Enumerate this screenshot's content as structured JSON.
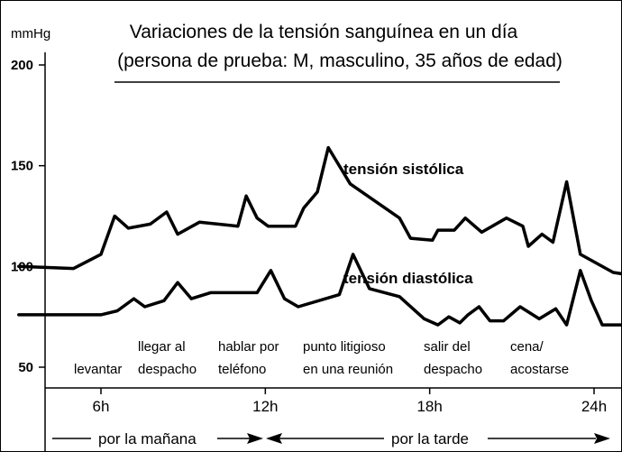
{
  "chart_data": {
    "type": "line",
    "title": "Variaciones de la tensión sanguínea en un día",
    "subtitle": "(persona de prueba: M, masculino, 35 años de edad)",
    "ylabel": "mmHg",
    "xlabel": "",
    "ylim": [
      50,
      200
    ],
    "xlim": [
      3,
      24
    ],
    "yticks": [
      50,
      100,
      150,
      200
    ],
    "xticks": [
      {
        "value": 6,
        "label": "6h"
      },
      {
        "value": 12,
        "label": "12h"
      },
      {
        "value": 18,
        "label": "18h"
      },
      {
        "value": 24,
        "label": "24h"
      }
    ],
    "grid": false,
    "legend": "none",
    "series": [
      {
        "name": "tensión sistólica",
        "color": "#000000",
        "points": [
          [
            3,
            100
          ],
          [
            5,
            99
          ],
          [
            6,
            106
          ],
          [
            6.5,
            125
          ],
          [
            7,
            119
          ],
          [
            7.8,
            121
          ],
          [
            8.4,
            127
          ],
          [
            8.8,
            116
          ],
          [
            9.6,
            122
          ],
          [
            11,
            120
          ],
          [
            11.3,
            135
          ],
          [
            11.7,
            124
          ],
          [
            12.1,
            120
          ],
          [
            13.1,
            120
          ],
          [
            13.4,
            129
          ],
          [
            13.9,
            137
          ],
          [
            14.3,
            159
          ],
          [
            15.1,
            141
          ],
          [
            16.9,
            124
          ],
          [
            17.3,
            114
          ],
          [
            18.1,
            113
          ],
          [
            18.3,
            118
          ],
          [
            18.9,
            118
          ],
          [
            19.3,
            124
          ],
          [
            19.9,
            117
          ],
          [
            20.8,
            124
          ],
          [
            21.4,
            120
          ],
          [
            21.6,
            110
          ],
          [
            22.1,
            116
          ],
          [
            22.5,
            112
          ],
          [
            23,
            142
          ],
          [
            23.5,
            106
          ],
          [
            24.7,
            97
          ],
          [
            25.2,
            96
          ]
        ]
      },
      {
        "name": "tensión diastólica",
        "color": "#000000",
        "points": [
          [
            3,
            76
          ],
          [
            6,
            76
          ],
          [
            6.6,
            78
          ],
          [
            7.2,
            84
          ],
          [
            7.6,
            80
          ],
          [
            8.3,
            83
          ],
          [
            8.8,
            92
          ],
          [
            9.3,
            84
          ],
          [
            10,
            87
          ],
          [
            11,
            87
          ],
          [
            11.7,
            87
          ],
          [
            12.2,
            98
          ],
          [
            12.7,
            84
          ],
          [
            13.2,
            80
          ],
          [
            14.7,
            86
          ],
          [
            15.2,
            106
          ],
          [
            15.8,
            89
          ],
          [
            16.9,
            85
          ],
          [
            17.8,
            74
          ],
          [
            18.3,
            71
          ],
          [
            18.7,
            75
          ],
          [
            19.1,
            72
          ],
          [
            19.4,
            76
          ],
          [
            19.8,
            80
          ],
          [
            20.2,
            73
          ],
          [
            20.7,
            73
          ],
          [
            21.3,
            80
          ],
          [
            22,
            74
          ],
          [
            22.6,
            79
          ],
          [
            23,
            71
          ],
          [
            23.5,
            98
          ],
          [
            23.9,
            83
          ],
          [
            24.3,
            71
          ],
          [
            25.2,
            71
          ]
        ]
      }
    ],
    "annotations": [
      {
        "lines": [
          "levantar"
        ]
      },
      {
        "lines": [
          "llegar al",
          "despacho"
        ]
      },
      {
        "lines": [
          "hablar por",
          "teléfono"
        ]
      },
      {
        "lines": [
          "punto litigioso",
          "en una reunión"
        ]
      },
      {
        "lines": [
          "salir del",
          "despacho"
        ]
      },
      {
        "lines": [
          "cena/",
          "acostarse"
        ]
      }
    ],
    "periods": [
      {
        "label": "por la mañana"
      },
      {
        "label": "por la tarde"
      }
    ]
  }
}
